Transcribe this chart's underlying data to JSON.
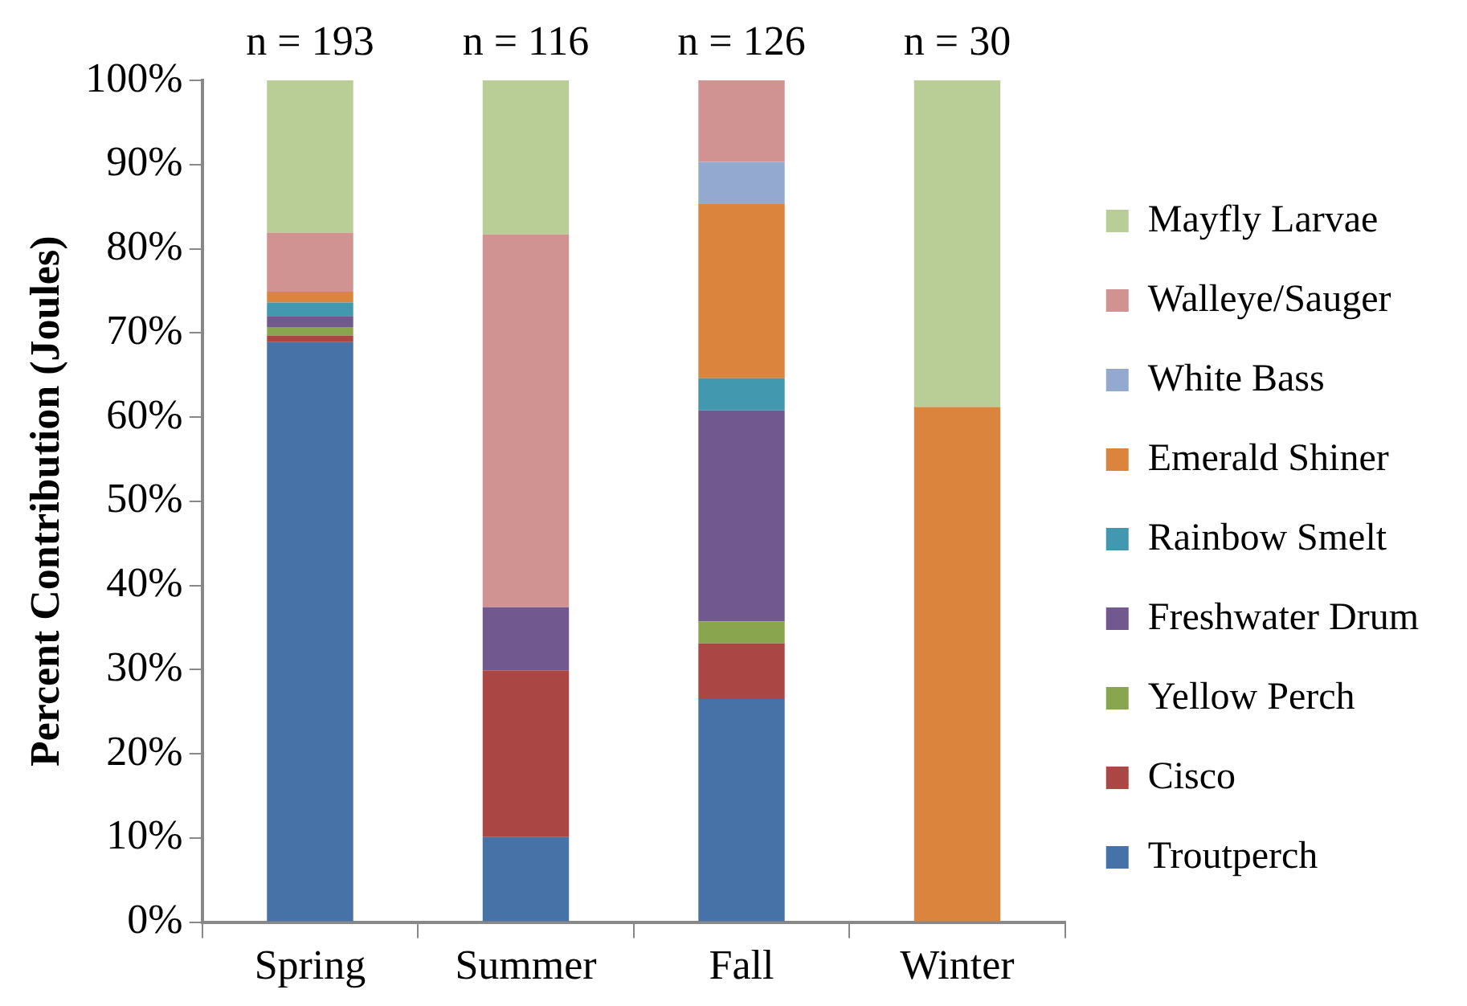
{
  "chart_data": {
    "type": "bar",
    "stacked": true,
    "ylabel": "Percent Contribution (Joules)",
    "categories": [
      "Spring",
      "Summer",
      "Fall",
      "Winter"
    ],
    "series": [
      {
        "name": "Troutperch",
        "color": "#4672a8",
        "values": [
          68.9,
          10.1,
          26.5,
          0
        ]
      },
      {
        "name": "Cisco",
        "color": "#aa4643",
        "values": [
          0.8,
          19.8,
          6.6,
          0
        ]
      },
      {
        "name": "Yellow Perch",
        "color": "#89a54e",
        "values": [
          1.0,
          0,
          2.6,
          0
        ]
      },
      {
        "name": "Freshwater Drum",
        "color": "#71588f",
        "values": [
          1.3,
          7.5,
          25.1,
          0
        ]
      },
      {
        "name": "Rainbow Smelt",
        "color": "#4198af",
        "values": [
          1.6,
          0,
          3.8,
          0
        ]
      },
      {
        "name": "Emerald Shiner",
        "color": "#db843d",
        "values": [
          1.3,
          0,
          20.7,
          61.2
        ]
      },
      {
        "name": "White Bass",
        "color": "#93a9cf",
        "values": [
          0,
          0,
          5.0,
          0
        ]
      },
      {
        "name": "Walleye/Sauger",
        "color": "#d19392",
        "values": [
          7.0,
          44.3,
          9.7,
          0
        ]
      },
      {
        "name": "Mayfly Larvae",
        "color": "#b9cd96",
        "values": [
          18.1,
          18.3,
          0,
          38.8
        ]
      }
    ],
    "ylim": [
      0,
      100
    ],
    "yticks": [
      {
        "value": 0,
        "label": "0%"
      },
      {
        "value": 10,
        "label": "10%"
      },
      {
        "value": 20,
        "label": "20%"
      },
      {
        "value": 30,
        "label": "30%"
      },
      {
        "value": 40,
        "label": "40%"
      },
      {
        "value": 50,
        "label": "50%"
      },
      {
        "value": 60,
        "label": "60%"
      },
      {
        "value": 70,
        "label": "70%"
      },
      {
        "value": 80,
        "label": "80%"
      },
      {
        "value": 90,
        "label": "90%"
      },
      {
        "value": 100,
        "label": "100%"
      }
    ],
    "annotations": [
      "n = 193",
      "n = 116",
      "n = 126",
      "n = 30"
    ],
    "grid": false,
    "legend": "right"
  }
}
